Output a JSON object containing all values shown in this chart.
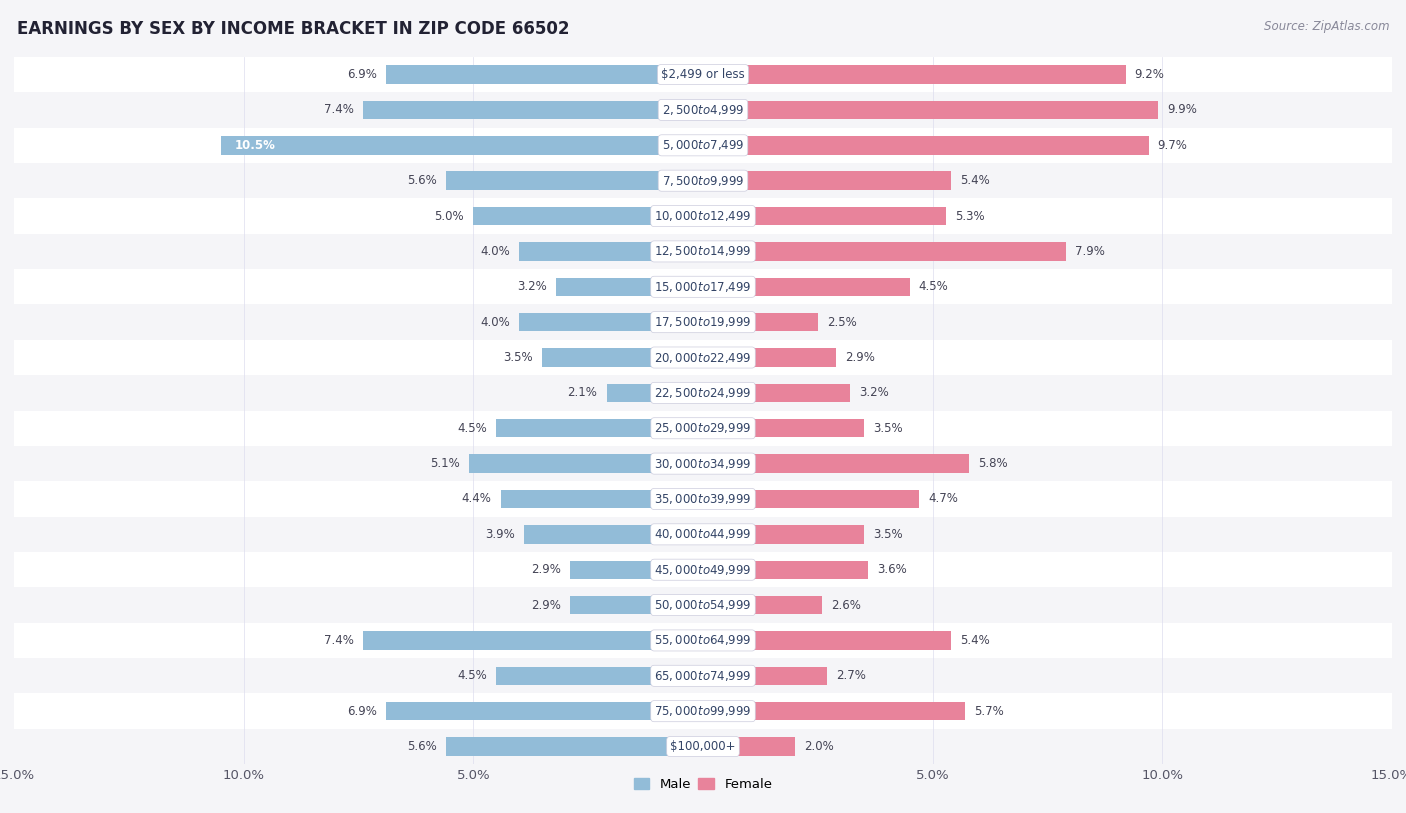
{
  "title": "EARNINGS BY SEX BY INCOME BRACKET IN ZIP CODE 66502",
  "source": "Source: ZipAtlas.com",
  "categories": [
    "$2,499 or less",
    "$2,500 to $4,999",
    "$5,000 to $7,499",
    "$7,500 to $9,999",
    "$10,000 to $12,499",
    "$12,500 to $14,999",
    "$15,000 to $17,499",
    "$17,500 to $19,999",
    "$20,000 to $22,499",
    "$22,500 to $24,999",
    "$25,000 to $29,999",
    "$30,000 to $34,999",
    "$35,000 to $39,999",
    "$40,000 to $44,999",
    "$45,000 to $49,999",
    "$50,000 to $54,999",
    "$55,000 to $64,999",
    "$65,000 to $74,999",
    "$75,000 to $99,999",
    "$100,000+"
  ],
  "male_values": [
    6.9,
    7.4,
    10.5,
    5.6,
    5.0,
    4.0,
    3.2,
    4.0,
    3.5,
    2.1,
    4.5,
    5.1,
    4.4,
    3.9,
    2.9,
    2.9,
    7.4,
    4.5,
    6.9,
    5.6
  ],
  "female_values": [
    9.2,
    9.9,
    9.7,
    5.4,
    5.3,
    7.9,
    4.5,
    2.5,
    2.9,
    3.2,
    3.5,
    5.8,
    4.7,
    3.5,
    3.6,
    2.6,
    5.4,
    2.7,
    5.7,
    2.0
  ],
  "male_color": "#92bcd8",
  "female_color": "#e8839b",
  "row_color_even": "#f5f5f8",
  "row_color_odd": "#ffffff",
  "label_color": "#555566",
  "category_bg": "#ffffff",
  "category_text_color": "#334466",
  "value_text_color": "#444455",
  "xlim": 15.0,
  "bar_height": 0.52,
  "title_fontsize": 12,
  "tick_fontsize": 9.5,
  "category_fontsize": 8.5,
  "value_fontsize": 8.5
}
